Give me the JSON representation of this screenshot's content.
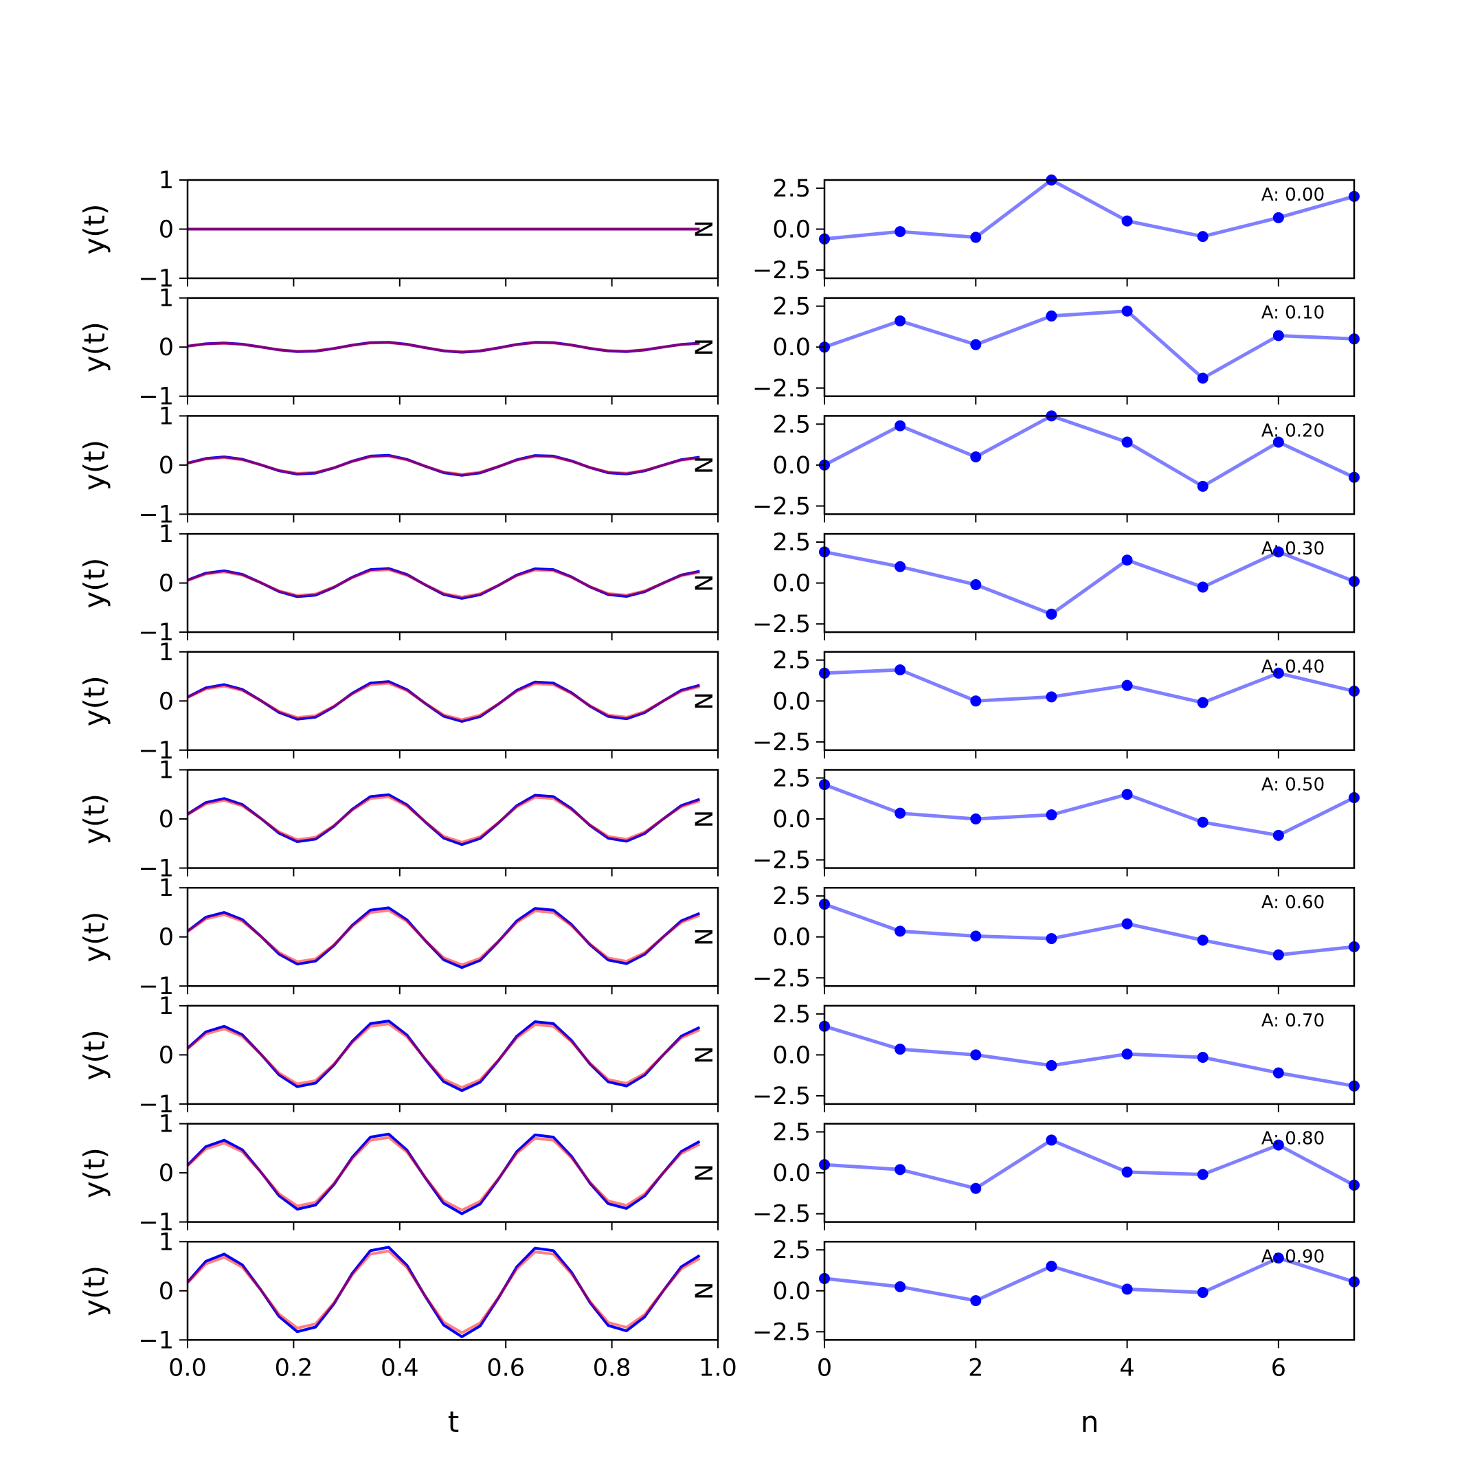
{
  "chart_data": [
    {
      "type": "line",
      "panel": "left",
      "xlabel": "t",
      "ylabel": "y(t)",
      "xlim": [
        0.0,
        1.0
      ],
      "ylim": [
        -1,
        1
      ],
      "x_ticks": [
        "0.0",
        "0.2",
        "0.4",
        "0.6",
        "0.8",
        "1.0"
      ],
      "y_ticks": [
        "1",
        "0",
        "−1"
      ],
      "series_colors": [
        "#0000ff",
        "#ff0000"
      ],
      "corner_marker": "N",
      "x": [
        0.0,
        0.0345,
        0.069,
        0.1034,
        0.1379,
        0.1724,
        0.2069,
        0.2414,
        0.2759,
        0.3103,
        0.3448,
        0.3793,
        0.4138,
        0.4483,
        0.4828,
        0.5172,
        0.5517,
        0.5862,
        0.6207,
        0.6552,
        0.6897,
        0.7241,
        0.7586,
        0.7931,
        0.8276,
        0.8621,
        0.8966,
        0.931,
        0.9655
      ],
      "amplitudes": [
        0.0,
        0.1,
        0.2,
        0.3,
        0.4,
        0.5,
        0.6,
        0.7,
        0.8,
        0.9
      ]
    },
    {
      "type": "line",
      "panel": "right",
      "xlabel": "n",
      "xlim": [
        0,
        7
      ],
      "ylim": [
        -3,
        3
      ],
      "x_ticks": [
        "0",
        "2",
        "4",
        "6"
      ],
      "y_ticks": [
        "2.5",
        "0.0",
        "−2.5"
      ],
      "color": "#0000ff",
      "x": [
        0,
        1,
        2,
        3,
        4,
        5,
        6,
        7
      ],
      "series": [
        {
          "label": "A: 0.00",
          "values": [
            -0.6,
            -0.15,
            -0.5,
            3.0,
            0.5,
            -0.45,
            0.7,
            2.0
          ]
        },
        {
          "label": "A: 0.10",
          "values": [
            0.0,
            1.6,
            0.15,
            1.9,
            2.2,
            -1.9,
            0.7,
            0.5
          ]
        },
        {
          "label": "A: 0.20",
          "values": [
            0.0,
            2.4,
            0.5,
            3.0,
            1.4,
            -1.3,
            1.4,
            -0.75
          ]
        },
        {
          "label": "A: 0.30",
          "values": [
            1.9,
            1.0,
            -0.1,
            -1.9,
            1.4,
            -0.25,
            1.9,
            0.1
          ]
        },
        {
          "label": "A: 0.40",
          "values": [
            1.7,
            1.9,
            0.0,
            0.25,
            0.95,
            -0.1,
            1.7,
            0.6
          ]
        },
        {
          "label": "A: 0.50",
          "values": [
            2.1,
            0.35,
            0.0,
            0.25,
            1.5,
            -0.2,
            -1.0,
            1.3
          ]
        },
        {
          "label": "A: 0.60",
          "values": [
            2.0,
            0.35,
            0.05,
            -0.1,
            0.8,
            -0.2,
            -1.1,
            -0.6
          ]
        },
        {
          "label": "A: 0.70",
          "values": [
            1.75,
            0.35,
            0.0,
            -0.65,
            0.05,
            -0.15,
            -1.1,
            -1.9
          ]
        },
        {
          "label": "A: 0.80",
          "values": [
            0.5,
            0.2,
            -0.95,
            2.0,
            0.05,
            -0.1,
            1.7,
            -0.75
          ]
        },
        {
          "label": "A: 0.90",
          "values": [
            0.75,
            0.25,
            -0.6,
            1.5,
            0.1,
            -0.1,
            2.0,
            0.55
          ]
        }
      ]
    }
  ]
}
